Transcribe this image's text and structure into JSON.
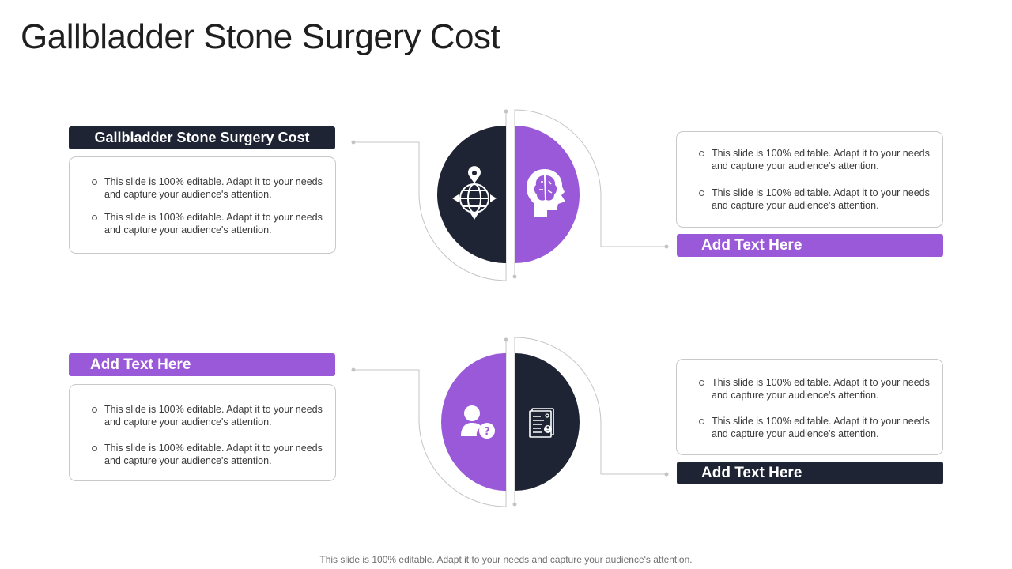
{
  "title": "Gallbladder Stone Surgery Cost",
  "blocks": {
    "top_left": {
      "label": "Gallbladder Stone Surgery Cost",
      "bullets": [
        "This slide is 100% editable. Adapt it to your needs and capture your audience's attention.",
        "This slide is 100% editable. Adapt it to your needs and capture your audience's attention."
      ]
    },
    "top_right": {
      "label": "Add Text Here",
      "bullets": [
        "This slide is 100% editable. Adapt it to your needs and capture your audience's attention.",
        "This slide is 100% editable. Adapt it to your needs and capture your audience's attention."
      ]
    },
    "bottom_left": {
      "label": "Add Text Here",
      "bullets": [
        "This slide is 100% editable. Adapt it to your needs and capture your audience's attention.",
        "This slide is 100% editable. Adapt it to your needs and capture your audience's attention."
      ]
    },
    "bottom_right": {
      "label": "Add Text Here",
      "bullets": [
        "This slide is 100% editable. Adapt it to your needs and capture your audience's attention.",
        "This slide is 100% editable. Adapt it to your needs and capture your audience's attention."
      ]
    }
  },
  "icons": [
    "globe-location-icon",
    "brain-head-icon",
    "user-question-icon",
    "resume-document-icon"
  ],
  "colors": {
    "dark": "#1e2434",
    "purple": "#9a59d8",
    "line": "#c4c4c4"
  },
  "footer": "This slide is 100% editable. Adapt it to your needs and capture your audience's attention."
}
